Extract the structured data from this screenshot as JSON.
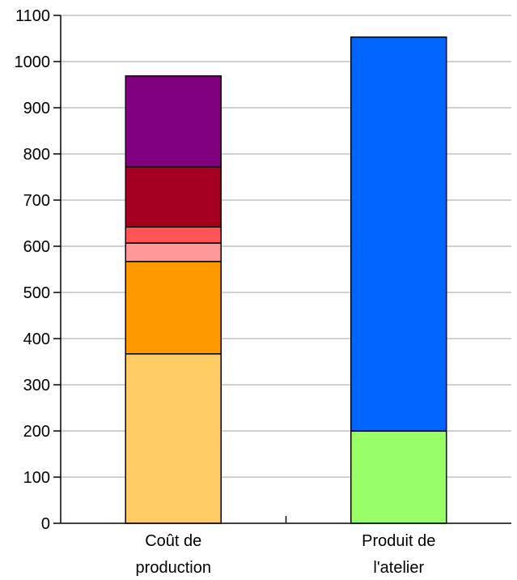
{
  "chart_data": {
    "type": "bar",
    "stacked": true,
    "categories": [
      "Coût de production",
      "Produit de l'atelier"
    ],
    "category_label_lines": [
      [
        "Coût de",
        "production"
      ],
      [
        "Produit de",
        "l'atelier"
      ]
    ],
    "ylim": [
      0,
      1100
    ],
    "yticks": [
      0,
      100,
      200,
      300,
      400,
      500,
      600,
      700,
      800,
      900,
      1000,
      1100
    ],
    "grid": true,
    "legend": "none",
    "title": "",
    "xlabel": "",
    "ylabel": "",
    "stacks": [
      {
        "category": "Coût de production",
        "segments": [
          {
            "value": 367,
            "color": "#FFCC66"
          },
          {
            "value": 200,
            "color": "#FF9900"
          },
          {
            "value": 40,
            "color": "#FF9999"
          },
          {
            "value": 35,
            "color": "#FF5555"
          },
          {
            "value": 130,
            "color": "#A50021"
          },
          {
            "value": 197,
            "color": "#800080"
          }
        ]
      },
      {
        "category": "Produit de l'atelier",
        "segments": [
          {
            "value": 200,
            "color": "#99FF66"
          },
          {
            "value": 853,
            "color": "#0066FF"
          }
        ]
      }
    ]
  }
}
